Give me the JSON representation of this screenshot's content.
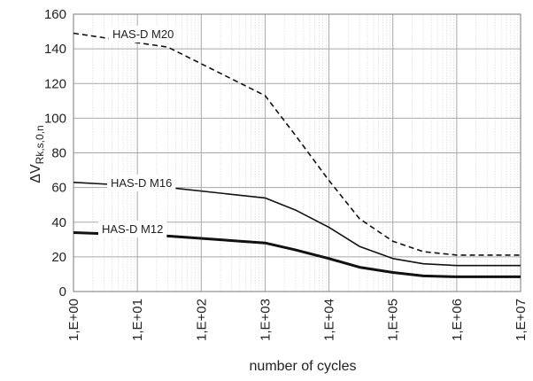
{
  "chart_data": {
    "type": "line",
    "xscale": "log",
    "xlim": [
      1,
      10000000
    ],
    "ylim": [
      0,
      160
    ],
    "grid": true,
    "xlabel": "number of cycles",
    "ylabel_main": "ΔV",
    "ylabel_sub": "Rk,s,0,n",
    "y_ticks": [
      "0",
      "20",
      "40",
      "60",
      "80",
      "100",
      "120",
      "140",
      "160"
    ],
    "x_ticks": [
      "1,E+00",
      "1,E+01",
      "1,E+02",
      "1,E+03",
      "1,E+04",
      "1,E+05",
      "1,E+06",
      "1,E+07"
    ],
    "series": [
      {
        "name": "HAS-D M20",
        "style": "dashed",
        "label_start": true,
        "x": [
          1,
          30,
          1000,
          3000,
          10000,
          30000,
          100000,
          300000,
          1000000,
          10000000
        ],
        "y": [
          149,
          141,
          113,
          90,
          64,
          42,
          29,
          23,
          21,
          21
        ]
      },
      {
        "name": "HAS-D M16",
        "style": "solid",
        "label_start": true,
        "x": [
          1,
          30,
          1000,
          3000,
          10000,
          30000,
          100000,
          300000,
          1000000,
          10000000
        ],
        "y": [
          63,
          60,
          54,
          47,
          37,
          26,
          19,
          16,
          15,
          15
        ]
      },
      {
        "name": "HAS-D M12",
        "style": "bold",
        "label_start": true,
        "x": [
          1,
          30,
          1000,
          3000,
          10000,
          30000,
          100000,
          300000,
          1000000,
          10000000
        ],
        "y": [
          34,
          32,
          28,
          24,
          19,
          14,
          11,
          9,
          8.5,
          8.5
        ]
      }
    ]
  }
}
